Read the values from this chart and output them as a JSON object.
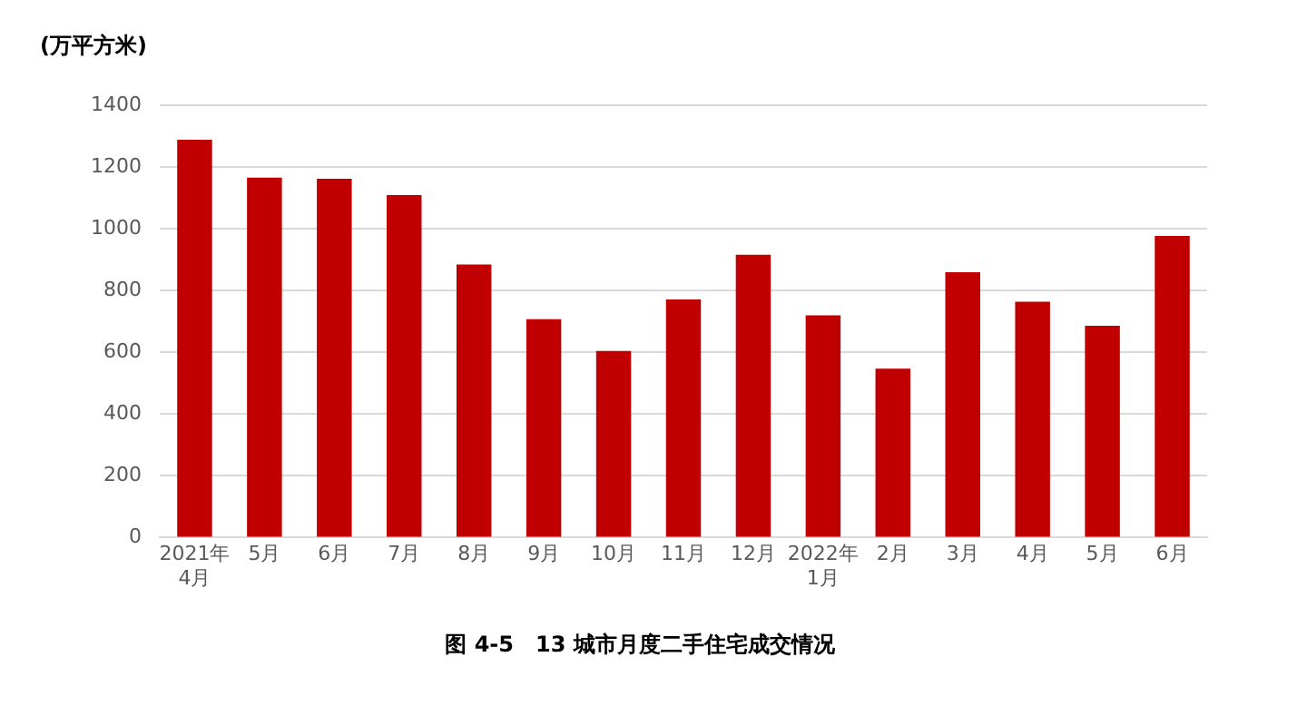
{
  "chart_data": {
    "type": "bar",
    "title": "图 4-5　13 城市月度二手住宅成交情况",
    "ylabel": "(万平方米)",
    "categories": [
      "2021年\n4月",
      "5月",
      "6月",
      "7月",
      "8月",
      "9月",
      "10月",
      "11月",
      "12月",
      "2022年\n1月",
      "2月",
      "3月",
      "4月",
      "5月",
      "6月"
    ],
    "values": [
      1288,
      1166,
      1162,
      1109,
      884,
      707,
      604,
      771,
      916,
      720,
      547,
      859,
      764,
      686,
      977
    ],
    "color": "#c00000",
    "ylim": [
      0,
      1400
    ],
    "yticks": [
      0,
      200,
      400,
      600,
      800,
      1000,
      1200,
      1400
    ],
    "grid": "y",
    "legend": false
  }
}
